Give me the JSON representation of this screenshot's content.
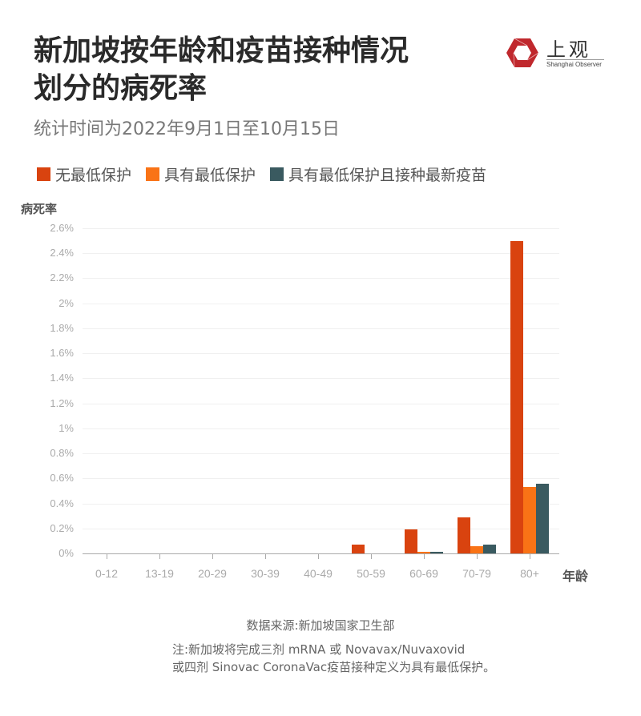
{
  "header": {
    "title_line1": "新加坡按年龄和疫苗接种情况",
    "title_line2": "划分的病死率",
    "subtitle": "统计时间为2022年9月1日至10月15日"
  },
  "logo": {
    "name_cn": "上观",
    "name_en": "Shanghai Observer",
    "color": "#c0282d"
  },
  "legend": [
    {
      "label": "无最低保护",
      "color": "#d9430f"
    },
    {
      "label": "具有最低保护",
      "color": "#f97316"
    },
    {
      "label": "具有最低保护且接种最新疫苗",
      "color": "#3a5a60"
    }
  ],
  "axes": {
    "ylabel": "病死率",
    "xlabel": "年龄"
  },
  "footer": {
    "source": "数据来源:新加坡国家卫生部",
    "note_line1": "注:新加坡将完成三剂 mRNA 或 Novavax/Nuvaxovid",
    "note_line2": "或四剂 Sinovac CoronaVac疫苗接种定义为具有最低保护。"
  },
  "chart_data": {
    "type": "bar",
    "title": "新加坡按年龄和疫苗接种情况划分的病死率",
    "subtitle": "统计时间为2022年9月1日至10月15日",
    "xlabel": "年龄",
    "ylabel": "病死率",
    "unit": "%",
    "ylim": [
      0,
      2.6
    ],
    "yticks": [
      "0%",
      "0.2%",
      "0.4%",
      "0.6%",
      "0.8%",
      "1%",
      "1.2%",
      "1.4%",
      "1.6%",
      "1.8%",
      "2%",
      "2.2%",
      "2.4%",
      "2.6%"
    ],
    "grid": true,
    "legend_position": "top",
    "categories": [
      "0-12",
      "13-19",
      "20-29",
      "30-39",
      "40-49",
      "50-59",
      "60-69",
      "70-79",
      "80+"
    ],
    "series": [
      {
        "name": "无最低保护",
        "color": "#d9430f",
        "values": [
          0,
          0,
          0,
          0,
          0,
          0.07,
          0.19,
          0.29,
          2.5
        ]
      },
      {
        "name": "具有最低保护",
        "color": "#f97316",
        "values": [
          0,
          0,
          0,
          0,
          0,
          0,
          0.01,
          0.06,
          0.53
        ]
      },
      {
        "name": "具有最低保护且接种最新疫苗",
        "color": "#3a5a60",
        "values": [
          0,
          0,
          0,
          0,
          0,
          0,
          0.01,
          0.07,
          0.56
        ]
      }
    ]
  }
}
